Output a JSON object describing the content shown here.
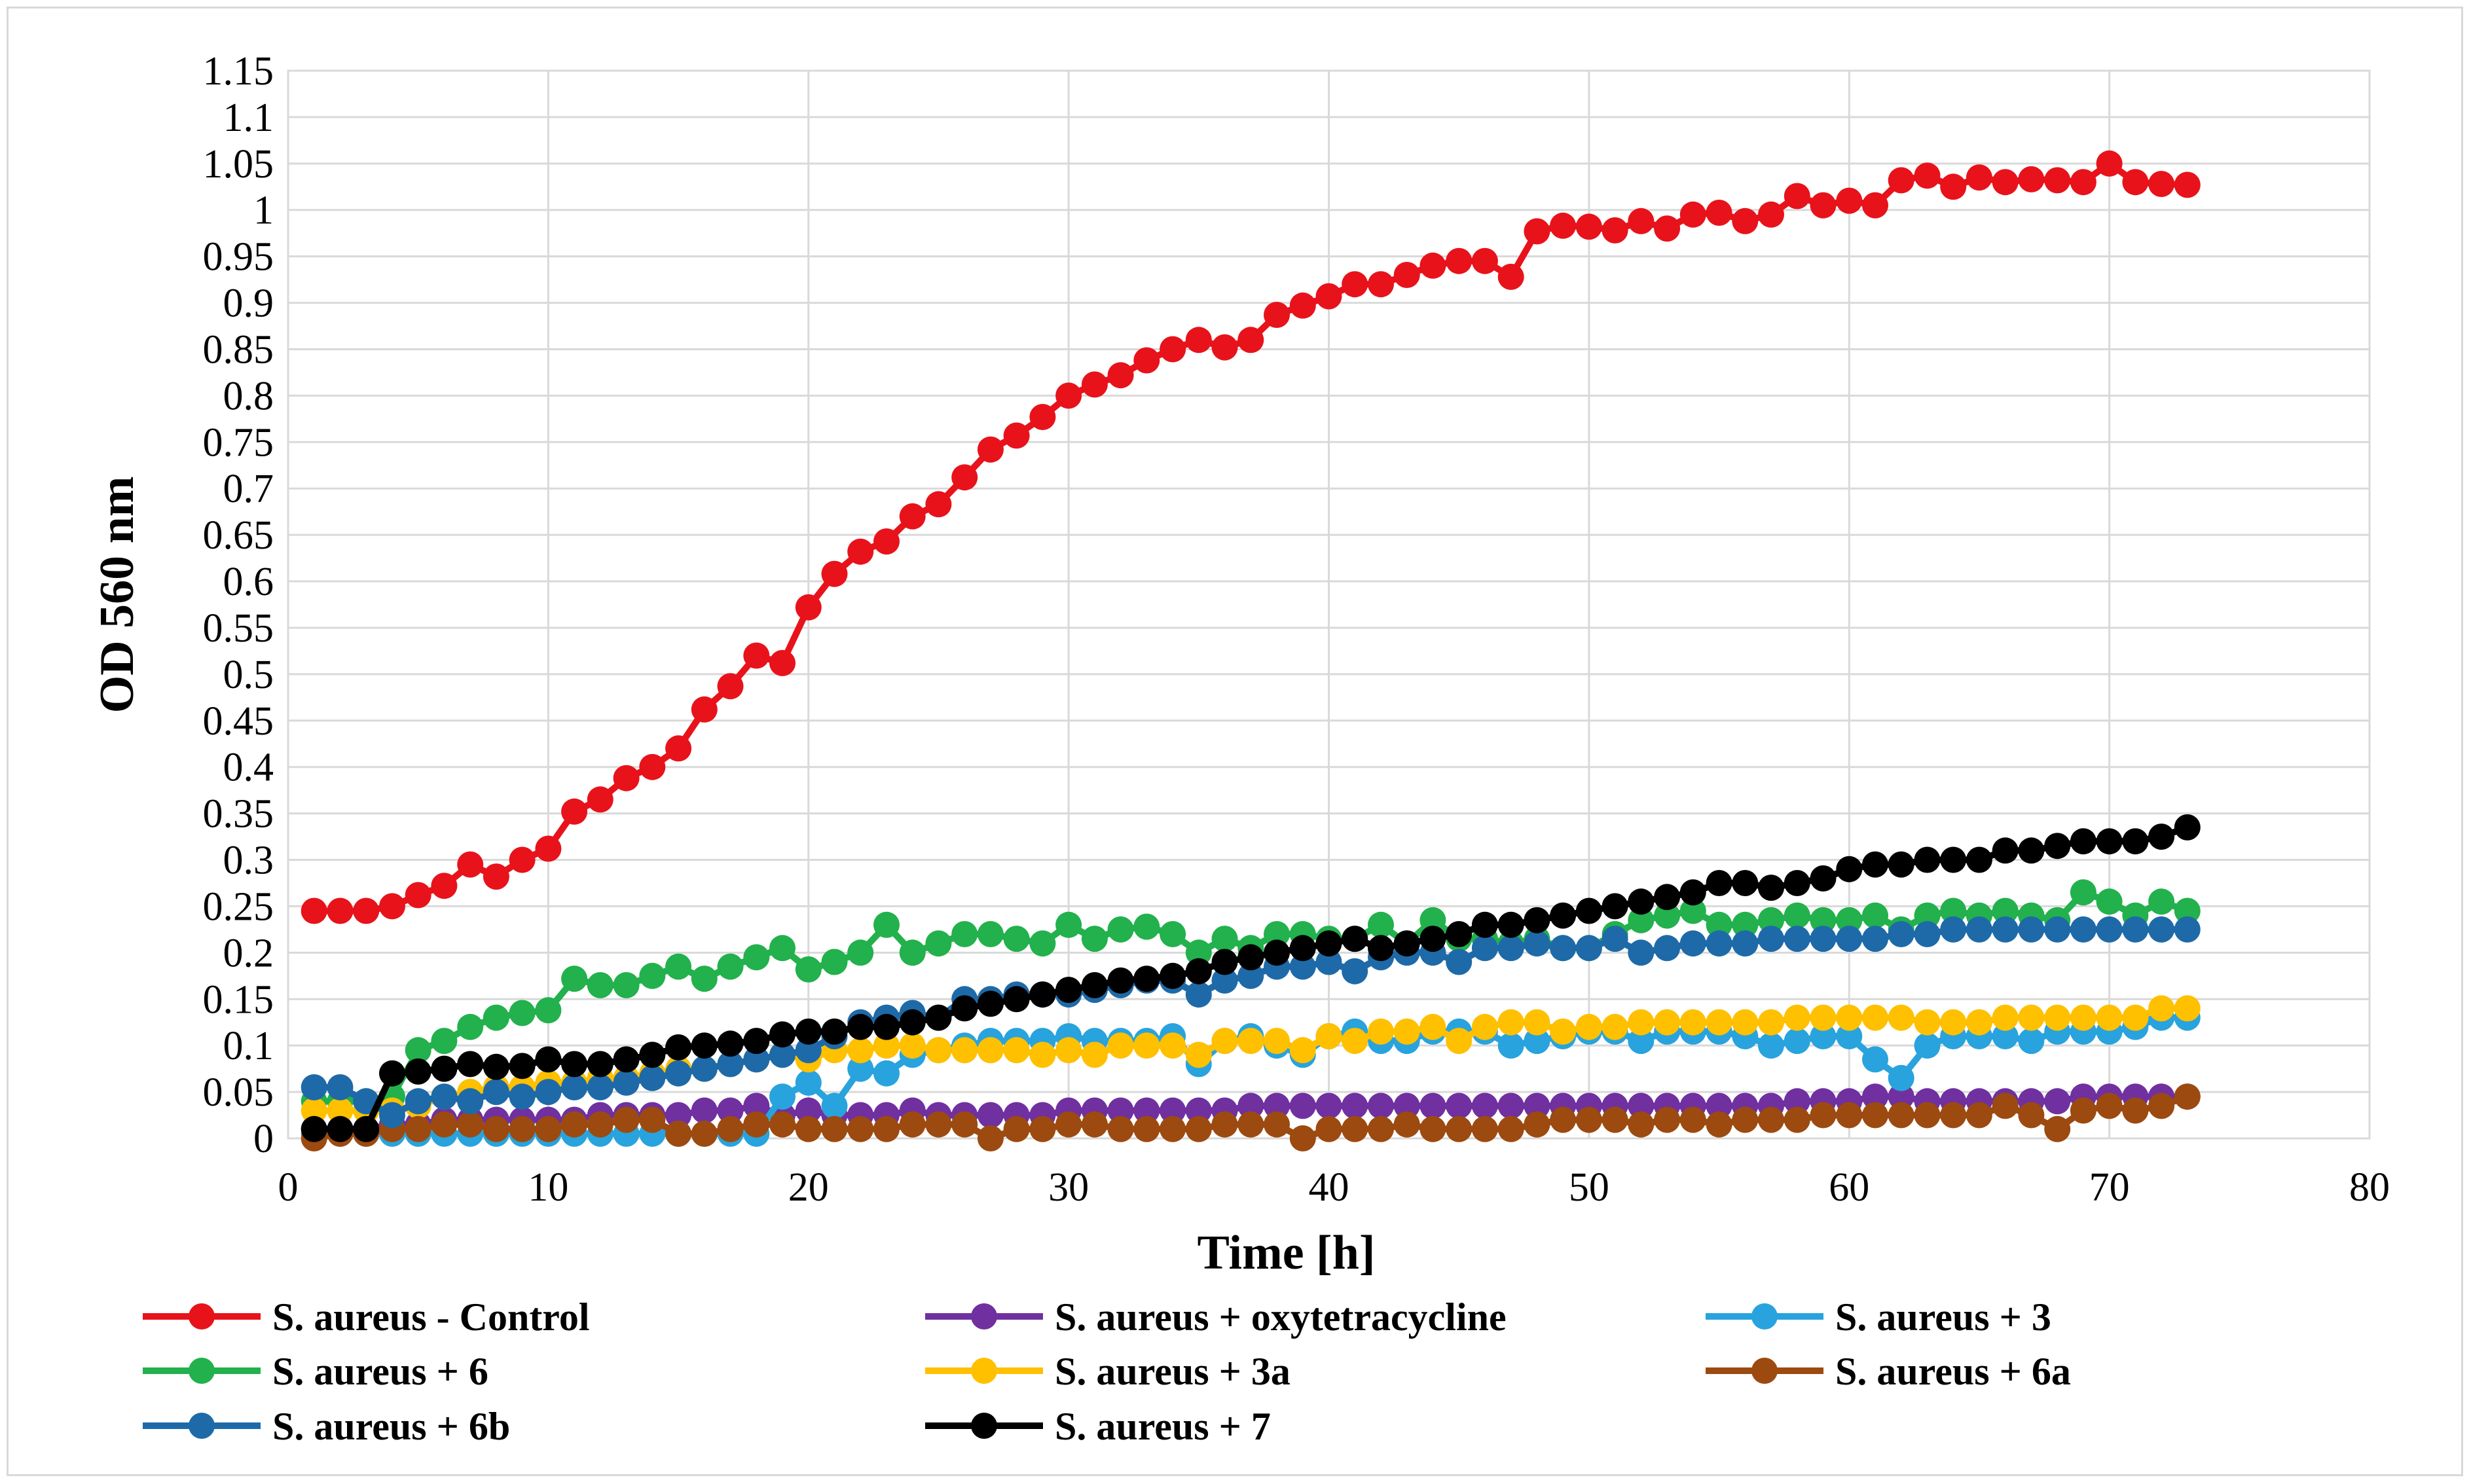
{
  "chart_data": {
    "type": "line",
    "title": "",
    "xlabel": "Time [h]",
    "ylabel": "OD 560 nm",
    "xlim": [
      0,
      80
    ],
    "ylim": [
      0,
      1.15
    ],
    "xticks": [
      0,
      10,
      20,
      30,
      40,
      50,
      60,
      70,
      80
    ],
    "xtick_labels": [
      "0",
      "10",
      "20",
      "30",
      "40",
      "50",
      "60",
      "70",
      "80"
    ],
    "yticks": [
      0,
      0.05,
      0.1,
      0.15,
      0.2,
      0.25,
      0.3,
      0.35,
      0.4,
      0.45,
      0.5,
      0.55,
      0.6,
      0.65,
      0.7,
      0.75,
      0.8,
      0.85,
      0.9,
      0.95,
      1,
      1.05,
      1.1,
      1.15
    ],
    "ytick_labels": [
      "0",
      "0.05",
      "0.1",
      "0.15",
      "0.2",
      "0.25",
      "0.3",
      "0.35",
      "0.4",
      "0.45",
      "0.5",
      "0.55",
      "0.6",
      "0.65",
      "0.7",
      "0.75",
      "0.8",
      "0.85",
      "0.9",
      "0.95",
      "1",
      "1.05",
      "1.1",
      "1.15"
    ],
    "grid": true,
    "legend_position": "bottom",
    "x_start": 1,
    "series": [
      {
        "name": "S. aureus - Control",
        "color": "#e8121b",
        "values": [
          0.245,
          0.245,
          0.245,
          0.25,
          0.262,
          0.272,
          0.295,
          0.282,
          0.3,
          0.312,
          0.352,
          0.365,
          0.388,
          0.4,
          0.42,
          0.462,
          0.487,
          0.52,
          0.512,
          0.572,
          0.608,
          0.632,
          0.643,
          0.67,
          0.683,
          0.712,
          0.742,
          0.757,
          0.777,
          0.8,
          0.812,
          0.822,
          0.838,
          0.85,
          0.86,
          0.852,
          0.86,
          0.887,
          0.897,
          0.907,
          0.92,
          0.92,
          0.93,
          0.94,
          0.945,
          0.945,
          0.928,
          0.977,
          0.983,
          0.982,
          0.978,
          0.988,
          0.98,
          0.995,
          0.997,
          0.988,
          0.995,
          1.015,
          1.005,
          1.01,
          1.005,
          1.032,
          1.037,
          1.025,
          1.035,
          1.03,
          1.033,
          1.032,
          1.03,
          1.05,
          1.03,
          1.028,
          1.027
        ]
      },
      {
        "name": "S. aureus + oxytetracycline",
        "color": "#7030a0",
        "values": [
          0.01,
          0.01,
          0.01,
          0.015,
          0.015,
          0.02,
          0.02,
          0.02,
          0.02,
          0.02,
          0.02,
          0.025,
          0.025,
          0.025,
          0.025,
          0.03,
          0.03,
          0.035,
          0.025,
          0.03,
          0.025,
          0.025,
          0.025,
          0.03,
          0.025,
          0.025,
          0.025,
          0.025,
          0.025,
          0.03,
          0.03,
          0.03,
          0.03,
          0.03,
          0.03,
          0.03,
          0.035,
          0.035,
          0.035,
          0.035,
          0.035,
          0.035,
          0.035,
          0.035,
          0.035,
          0.035,
          0.035,
          0.035,
          0.035,
          0.035,
          0.035,
          0.035,
          0.035,
          0.035,
          0.035,
          0.035,
          0.035,
          0.04,
          0.04,
          0.04,
          0.045,
          0.045,
          0.04,
          0.04,
          0.04,
          0.04,
          0.04,
          0.04,
          0.045,
          0.045,
          0.045,
          0.045,
          0.045
        ]
      },
      {
        "name": "S. aureus + 3",
        "color": "#28a3dd",
        "values": [
          0.005,
          0.005,
          0.005,
          0.005,
          0.005,
          0.005,
          0.005,
          0.005,
          0.005,
          0.005,
          0.005,
          0.005,
          0.005,
          0.005,
          0.005,
          0.005,
          0.005,
          0.005,
          0.045,
          0.06,
          0.035,
          0.075,
          0.07,
          0.09,
          0.095,
          0.1,
          0.105,
          0.105,
          0.105,
          0.11,
          0.105,
          0.105,
          0.105,
          0.11,
          0.08,
          0.105,
          0.11,
          0.1,
          0.09,
          0.11,
          0.115,
          0.105,
          0.105,
          0.115,
          0.115,
          0.115,
          0.1,
          0.105,
          0.11,
          0.115,
          0.115,
          0.105,
          0.115,
          0.115,
          0.115,
          0.11,
          0.1,
          0.105,
          0.11,
          0.11,
          0.085,
          0.065,
          0.1,
          0.11,
          0.11,
          0.11,
          0.105,
          0.115,
          0.115,
          0.115,
          0.12,
          0.13,
          0.13
        ]
      },
      {
        "name": "S. aureus + 6",
        "color": "#22b14c",
        "values": [
          0.04,
          0.04,
          0.04,
          0.045,
          0.095,
          0.105,
          0.12,
          0.13,
          0.135,
          0.138,
          0.172,
          0.165,
          0.165,
          0.175,
          0.185,
          0.172,
          0.185,
          0.195,
          0.205,
          0.182,
          0.19,
          0.2,
          0.23,
          0.2,
          0.21,
          0.22,
          0.22,
          0.215,
          0.21,
          0.23,
          0.215,
          0.225,
          0.228,
          0.22,
          0.2,
          0.215,
          0.205,
          0.22,
          0.22,
          0.215,
          0.215,
          0.23,
          0.21,
          0.235,
          0.215,
          0.215,
          0.21,
          0.215,
          0.205,
          0.205,
          0.22,
          0.235,
          0.24,
          0.245,
          0.23,
          0.23,
          0.235,
          0.24,
          0.235,
          0.235,
          0.24,
          0.225,
          0.24,
          0.245,
          0.24,
          0.245,
          0.24,
          0.235,
          0.265,
          0.255,
          0.24,
          0.255,
          0.245
        ]
      },
      {
        "name": "S. aureus + 3a",
        "color": "#ffc000",
        "values": [
          0.03,
          0.03,
          0.03,
          0.03,
          0.035,
          0.045,
          0.05,
          0.055,
          0.055,
          0.06,
          0.06,
          0.065,
          0.065,
          0.07,
          0.075,
          0.075,
          0.08,
          0.085,
          0.09,
          0.085,
          0.095,
          0.095,
          0.1,
          0.1,
          0.095,
          0.095,
          0.095,
          0.095,
          0.09,
          0.095,
          0.09,
          0.1,
          0.1,
          0.1,
          0.09,
          0.105,
          0.105,
          0.105,
          0.095,
          0.11,
          0.105,
          0.115,
          0.115,
          0.12,
          0.105,
          0.12,
          0.125,
          0.125,
          0.115,
          0.12,
          0.12,
          0.125,
          0.125,
          0.125,
          0.125,
          0.125,
          0.125,
          0.13,
          0.13,
          0.13,
          0.13,
          0.13,
          0.125,
          0.125,
          0.125,
          0.13,
          0.13,
          0.13,
          0.13,
          0.13,
          0.13,
          0.14,
          0.14
        ]
      },
      {
        "name": "S. aureus + 6a",
        "color": "#9c4a10",
        "values": [
          0.0,
          0.005,
          0.005,
          0.01,
          0.01,
          0.015,
          0.015,
          0.01,
          0.01,
          0.01,
          0.015,
          0.015,
          0.02,
          0.02,
          0.005,
          0.005,
          0.01,
          0.015,
          0.015,
          0.01,
          0.01,
          0.01,
          0.01,
          0.015,
          0.015,
          0.015,
          0.0,
          0.01,
          0.01,
          0.015,
          0.015,
          0.01,
          0.01,
          0.01,
          0.01,
          0.015,
          0.015,
          0.015,
          0.0,
          0.01,
          0.01,
          0.01,
          0.015,
          0.01,
          0.01,
          0.01,
          0.01,
          0.015,
          0.02,
          0.02,
          0.02,
          0.015,
          0.02,
          0.02,
          0.015,
          0.02,
          0.02,
          0.02,
          0.025,
          0.025,
          0.025,
          0.025,
          0.025,
          0.025,
          0.025,
          0.035,
          0.025,
          0.01,
          0.03,
          0.035,
          0.03,
          0.035,
          0.045
        ]
      },
      {
        "name": "S. aureus + 6b",
        "color": "#1e6aa8",
        "values": [
          0.055,
          0.055,
          0.04,
          0.025,
          0.04,
          0.045,
          0.04,
          0.05,
          0.045,
          0.05,
          0.055,
          0.055,
          0.06,
          0.065,
          0.07,
          0.075,
          0.08,
          0.085,
          0.09,
          0.095,
          0.11,
          0.125,
          0.13,
          0.135,
          0.13,
          0.15,
          0.15,
          0.155,
          0.155,
          0.155,
          0.16,
          0.165,
          0.17,
          0.17,
          0.155,
          0.17,
          0.175,
          0.185,
          0.185,
          0.19,
          0.18,
          0.195,
          0.2,
          0.2,
          0.19,
          0.205,
          0.205,
          0.21,
          0.205,
          0.205,
          0.215,
          0.2,
          0.205,
          0.21,
          0.21,
          0.21,
          0.215,
          0.215,
          0.215,
          0.215,
          0.215,
          0.22,
          0.22,
          0.225,
          0.225,
          0.225,
          0.225,
          0.225,
          0.225,
          0.225,
          0.225,
          0.225,
          0.225
        ]
      },
      {
        "name": "S. aureus + 7",
        "color": "#000000",
        "values": [
          0.01,
          0.01,
          0.01,
          0.07,
          0.072,
          0.075,
          0.08,
          0.077,
          0.078,
          0.085,
          0.08,
          0.08,
          0.085,
          0.09,
          0.098,
          0.1,
          0.102,
          0.105,
          0.112,
          0.115,
          0.115,
          0.12,
          0.12,
          0.125,
          0.13,
          0.14,
          0.145,
          0.15,
          0.155,
          0.16,
          0.165,
          0.17,
          0.172,
          0.175,
          0.18,
          0.19,
          0.195,
          0.2,
          0.205,
          0.21,
          0.215,
          0.205,
          0.21,
          0.215,
          0.22,
          0.23,
          0.23,
          0.235,
          0.24,
          0.245,
          0.25,
          0.255,
          0.26,
          0.265,
          0.275,
          0.275,
          0.27,
          0.275,
          0.28,
          0.29,
          0.295,
          0.295,
          0.3,
          0.3,
          0.3,
          0.31,
          0.31,
          0.315,
          0.32,
          0.32,
          0.32,
          0.325,
          0.335
        ]
      }
    ]
  }
}
